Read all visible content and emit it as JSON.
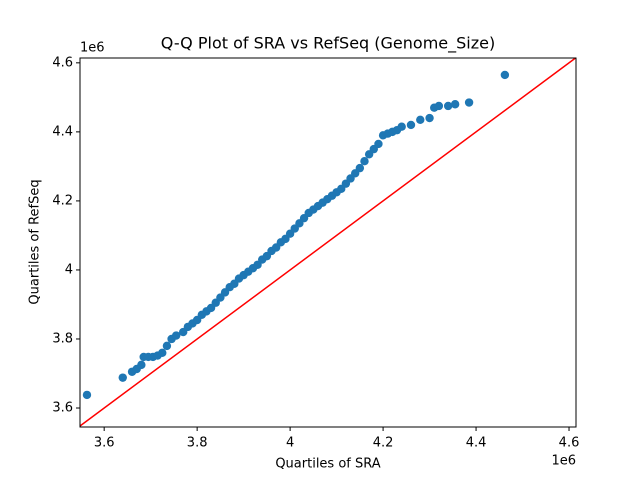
{
  "chart_data": {
    "type": "scatter",
    "title": "Q-Q Plot of SRA vs RefSeq (Genome_Size)",
    "x_label": "Quartiles of SRA",
    "y_label": "Quartiles of RefSeq",
    "x_offset_text": "1e6",
    "y_offset_text": "1e6",
    "xlim": [
      3.548,
      4.615
    ],
    "ylim": [
      3.545,
      4.614
    ],
    "xticks": [
      3.6,
      3.8,
      4.0,
      {
        "value": 4.2,
        "label": "4.2"
      },
      4.4,
      4.6
    ],
    "yticks": [
      3.6,
      3.8,
      4.0,
      4.2,
      4.4,
      4.6
    ],
    "grid": false,
    "reference_line": {
      "color": "#ff0000"
    },
    "x": [
      3.563,
      3.64,
      3.66,
      3.67,
      3.68,
      3.685,
      3.695,
      3.705,
      3.715,
      3.725,
      3.735,
      3.745,
      3.755,
      3.77,
      3.78,
      3.79,
      3.8,
      3.81,
      3.82,
      3.83,
      3.84,
      3.85,
      3.86,
      3.87,
      3.88,
      3.89,
      3.9,
      3.91,
      3.92,
      3.93,
      3.94,
      3.95,
      3.96,
      3.97,
      3.98,
      3.99,
      4.0,
      4.01,
      4.02,
      4.03,
      4.04,
      4.05,
      4.06,
      4.07,
      4.08,
      4.09,
      4.1,
      4.11,
      4.12,
      4.13,
      4.14,
      4.15,
      4.16,
      4.17,
      4.18,
      4.19,
      4.2,
      4.21,
      4.22,
      4.23,
      4.24,
      4.26,
      4.28,
      4.3,
      4.31,
      4.32,
      4.34,
      4.355,
      4.385,
      4.462
    ],
    "series": [
      {
        "color": "#1f77b4",
        "values": [
          3.638,
          3.688,
          3.705,
          3.713,
          3.725,
          3.748,
          3.748,
          3.748,
          3.752,
          3.76,
          3.78,
          3.8,
          3.81,
          3.82,
          3.835,
          3.845,
          3.855,
          3.87,
          3.88,
          3.89,
          3.905,
          3.92,
          3.935,
          3.95,
          3.96,
          3.975,
          3.985,
          3.995,
          4.005,
          4.015,
          4.03,
          4.04,
          4.055,
          4.065,
          4.08,
          4.09,
          4.105,
          4.12,
          4.135,
          4.15,
          4.165,
          4.175,
          4.185,
          4.195,
          4.205,
          4.215,
          4.225,
          4.235,
          4.25,
          4.265,
          4.28,
          4.295,
          4.315,
          4.335,
          4.35,
          4.365,
          4.39,
          4.395,
          4.4,
          4.405,
          4.415,
          4.42,
          4.435,
          4.44,
          4.47,
          4.475,
          4.475,
          4.48,
          4.485,
          4.565
        ]
      }
    ]
  }
}
